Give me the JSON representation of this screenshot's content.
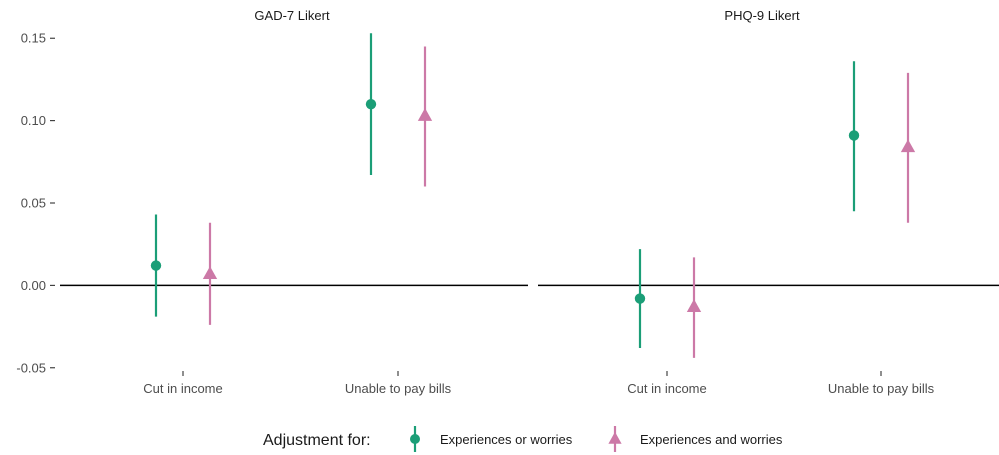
{
  "chart_data": {
    "type": "scatter",
    "subtype": "point-range",
    "panels": [
      {
        "title": "GAD-7 Likert"
      },
      {
        "title": "PHQ-9 Likert"
      }
    ],
    "categories": [
      "Cut in income",
      "Unable to pay bills"
    ],
    "y_ticks": [
      0.15,
      0.1,
      0.05,
      0.0,
      -0.05
    ],
    "y_tick_labels": [
      "0.15",
      "0.10",
      "0.05",
      "0.00",
      "-0.05"
    ],
    "ylim": [
      -0.055,
      0.155
    ],
    "reference_line": 0,
    "grid": false,
    "legend": {
      "position": "bottom",
      "title": "Adjustment for:"
    },
    "series": [
      {
        "name": "Experiences or worries",
        "color": "#1b9e77",
        "marker": "circle",
        "data": [
          [
            {
              "estimate": 0.012,
              "low": -0.019,
              "high": 0.043
            },
            {
              "estimate": 0.11,
              "low": 0.067,
              "high": 0.153
            }
          ],
          [
            {
              "estimate": -0.008,
              "low": -0.038,
              "high": 0.022
            },
            {
              "estimate": 0.091,
              "low": 0.045,
              "high": 0.136
            }
          ]
        ]
      },
      {
        "name": "Experiences and worries",
        "color": "#cc79a7",
        "marker": "triangle",
        "data": [
          [
            {
              "estimate": 0.007,
              "low": -0.024,
              "high": 0.038
            },
            {
              "estimate": 0.103,
              "low": 0.06,
              "high": 0.145
            }
          ],
          [
            {
              "estimate": -0.013,
              "low": -0.044,
              "high": 0.017
            },
            {
              "estimate": 0.084,
              "low": 0.038,
              "high": 0.129
            }
          ]
        ]
      }
    ]
  }
}
